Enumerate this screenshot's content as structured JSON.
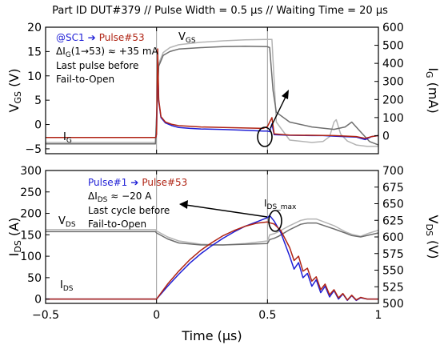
{
  "header": {
    "title": "Part ID DUT#379 // Pulse Width = 0.5 μs // Waiting Time = 20 μs"
  },
  "colors": {
    "blue": "#1f1fd6",
    "red": "#b02414",
    "dark_gray": "#6e6e6e",
    "light_gray": "#b4b4b4",
    "pink": "#e8a4bd",
    "axis": "#000000",
    "marker": "#9a9a9a"
  },
  "chart_data": [
    {
      "type": "line",
      "title": "",
      "xlabel": "",
      "x_ticks": [],
      "xlim": [
        -0.5,
        1.0
      ],
      "y_left": {
        "label_main": "V",
        "label_sub": "GS",
        "label_unit": " (V)",
        "ylim": [
          -6,
          20
        ],
        "ticks": [
          -5,
          0,
          5,
          10,
          15,
          20
        ]
      },
      "y_right": {
        "label_main": "I",
        "label_sub": "G",
        "label_unit": " (mA)",
        "ylim": [
          -100,
          600
        ],
        "ticks": [
          0,
          100,
          200,
          300,
          400,
          500,
          600
        ]
      },
      "labels": {
        "vgs_main": "V",
        "vgs_sub": "GS",
        "ig_main": "I",
        "ig_sub": "G"
      },
      "annotation": {
        "line1_a": "@SC1",
        "line1_arrow": "➔",
        "line1_b": "Pulse#53",
        "line2": "ΔI",
        "line2_sub": "G",
        "line2_tail": "(1→53) ≈ +35 mA",
        "line3": "Last pulse before",
        "line4": "Fail-to-Open"
      },
      "series": [
        {
          "name": "V_GS (Pulse#1)",
          "axis": "left",
          "color_key": "light_gray",
          "x": [
            -0.5,
            -0.005,
            0.01,
            0.03,
            0.06,
            0.1,
            0.2,
            0.3,
            0.4,
            0.5,
            0.52,
            0.53,
            0.54,
            0.6,
            0.7,
            0.75,
            0.78,
            0.8,
            0.81,
            0.83,
            0.86,
            0.9,
            0.95,
            1.0
          ],
          "y": [
            -3.7,
            -3.7,
            12.5,
            14.8,
            15.8,
            16.4,
            16.9,
            17.2,
            17.4,
            17.5,
            17.5,
            9.0,
            0.5,
            -3.2,
            -3.7,
            -3.5,
            -2.5,
            0.5,
            1.0,
            -2.0,
            -3.4,
            -4.2,
            -4.5,
            -4.5
          ]
        },
        {
          "name": "V_GS (Pulse#53)",
          "axis": "left",
          "color_key": "dark_gray",
          "x": [
            -0.5,
            -0.005,
            0.01,
            0.03,
            0.06,
            0.1,
            0.2,
            0.3,
            0.4,
            0.5,
            0.51,
            0.525,
            0.54,
            0.6,
            0.7,
            0.8,
            0.85,
            0.88,
            0.92,
            0.96,
            1.0
          ],
          "y": [
            -4.0,
            -4.0,
            12.0,
            14.2,
            15.0,
            15.5,
            15.8,
            16.0,
            16.1,
            16.0,
            15.8,
            7.0,
            2.5,
            0.5,
            -0.5,
            -1.0,
            -0.5,
            0.5,
            -1.5,
            -3.5,
            -4.2
          ]
        },
        {
          "name": "I_G (Pulse#1)",
          "axis": "right",
          "color_key": "blue",
          "x": [
            -0.5,
            -0.003,
            0.0,
            0.005,
            0.01,
            0.02,
            0.04,
            0.07,
            0.1,
            0.15,
            0.2,
            0.3,
            0.4,
            0.48,
            0.5,
            0.51,
            0.52,
            0.53,
            0.6,
            0.7,
            0.75,
            0.8,
            0.9,
            0.94,
            0.97,
            1.0
          ],
          "y": [
            -10,
            -10,
            10,
            400,
            190,
            100,
            70,
            55,
            45,
            40,
            37,
            34,
            30,
            25,
            25,
            22,
            65,
            5,
            2,
            0,
            0,
            -3,
            -8,
            -22,
            -5,
            0
          ]
        },
        {
          "name": "I_G (Pulse#53)",
          "axis": "right",
          "color_key": "red",
          "x": [
            -0.5,
            -0.003,
            0.0,
            0.005,
            0.01,
            0.02,
            0.04,
            0.07,
            0.1,
            0.15,
            0.2,
            0.3,
            0.4,
            0.48,
            0.5,
            0.51,
            0.52,
            0.53,
            0.6,
            0.7,
            0.8,
            0.9,
            0.94,
            0.97,
            1.0
          ],
          "y": [
            -10,
            -10,
            10,
            480,
            200,
            105,
            75,
            62,
            55,
            52,
            48,
            45,
            42,
            40,
            50,
            75,
            100,
            10,
            3,
            2,
            0,
            -5,
            -15,
            -5,
            0
          ]
        }
      ]
    },
    {
      "type": "line",
      "title": "",
      "xlabel": "Time (μs)",
      "x_ticks": [
        -0.5,
        0,
        0.5,
        1
      ],
      "x_tick_labels": [
        "−0.5",
        "0",
        "0.5",
        "1"
      ],
      "xlim": [
        -0.5,
        1.0
      ],
      "y_left": {
        "label_main": "I",
        "label_sub": "DS",
        "label_unit": " (A)",
        "ylim": [
          -10,
          300
        ],
        "ticks": [
          0,
          50,
          100,
          150,
          200,
          250,
          300
        ]
      },
      "y_right": {
        "label_main": "V",
        "label_sub": "DS",
        "label_unit": " (V)",
        "ylim": [
          500,
          700
        ],
        "ticks": [
          500,
          525,
          550,
          575,
          600,
          625,
          650,
          675,
          700
        ]
      },
      "labels": {
        "vds_main": "V",
        "vds_sub": "DS",
        "ids_main": "I",
        "ids_sub": "DS",
        "idsmax_main": "I",
        "idsmax_sub": "DS_max"
      },
      "annotation": {
        "line1_a": "Pulse#1",
        "line1_arrow": "➔",
        "line1_b": "Pulse#53",
        "line2": "ΔI",
        "line2_sub": "DS",
        "line2_tail": " ≈ −20 A",
        "line3": "Last cycle before",
        "line4": "Fail-to-Open"
      },
      "series": [
        {
          "name": "V_DS (Pulse#1)",
          "axis": "right",
          "color_key": "light_gray",
          "x": [
            -0.5,
            -0.005,
            0.0,
            0.05,
            0.1,
            0.2,
            0.3,
            0.4,
            0.5,
            0.51,
            0.53,
            0.55,
            0.6,
            0.65,
            0.68,
            0.72,
            0.8,
            0.85,
            0.88,
            0.92,
            0.96,
            1.0
          ],
          "y": [
            611,
            611,
            609,
            600,
            594,
            589,
            588,
            590,
            594,
            603,
            605,
            608,
            617,
            625,
            627,
            627,
            617,
            608,
            604,
            601,
            606,
            610
          ]
        },
        {
          "name": "V_DS (Pulse#53)",
          "axis": "right",
          "color_key": "dark_gray",
          "x": [
            -0.5,
            -0.005,
            0.0,
            0.05,
            0.1,
            0.2,
            0.3,
            0.4,
            0.5,
            0.51,
            0.53,
            0.55,
            0.6,
            0.65,
            0.68,
            0.72,
            0.8,
            0.85,
            0.88,
            0.92,
            0.96,
            1.0
          ],
          "y": [
            608,
            608,
            606,
            597,
            591,
            588,
            588,
            589,
            590,
            596,
            598,
            601,
            611,
            619,
            621,
            621,
            612,
            606,
            602,
            600,
            603,
            606
          ]
        },
        {
          "name": "I_DS (Pulse#1)",
          "axis": "left",
          "color_key": "blue",
          "x": [
            -0.5,
            -0.005,
            0.0,
            0.05,
            0.1,
            0.15,
            0.2,
            0.25,
            0.3,
            0.35,
            0.4,
            0.45,
            0.5,
            0.51,
            0.53,
            0.56,
            0.6,
            0.62,
            0.64,
            0.66,
            0.68,
            0.7,
            0.72,
            0.74,
            0.76,
            0.78,
            0.8,
            0.82,
            0.84,
            0.86,
            0.88,
            0.9,
            0.92,
            0.95,
            1.0
          ],
          "y": [
            0,
            0,
            0,
            30,
            58,
            84,
            106,
            125,
            142,
            157,
            170,
            180,
            190,
            195,
            182,
            155,
            100,
            70,
            85,
            50,
            60,
            30,
            45,
            15,
            30,
            5,
            20,
            0,
            12,
            -3,
            8,
            -3,
            3,
            0,
            0
          ]
        },
        {
          "name": "I_DS (Pulse#53)",
          "axis": "left",
          "color_key": "red",
          "x": [
            -0.5,
            -0.005,
            0.0,
            0.05,
            0.1,
            0.15,
            0.2,
            0.25,
            0.3,
            0.35,
            0.4,
            0.45,
            0.5,
            0.51,
            0.53,
            0.56,
            0.6,
            0.62,
            0.64,
            0.66,
            0.68,
            0.7,
            0.72,
            0.74,
            0.76,
            0.78,
            0.8,
            0.82,
            0.84,
            0.86,
            0.88,
            0.9,
            0.92,
            0.95,
            1.0
          ],
          "y": [
            0,
            0,
            0,
            35,
            65,
            92,
            114,
            132,
            148,
            160,
            170,
            177,
            180,
            178,
            175,
            160,
            120,
            90,
            100,
            65,
            72,
            42,
            52,
            22,
            35,
            10,
            22,
            3,
            13,
            -2,
            9,
            -2,
            4,
            0,
            0
          ]
        }
      ]
    }
  ]
}
